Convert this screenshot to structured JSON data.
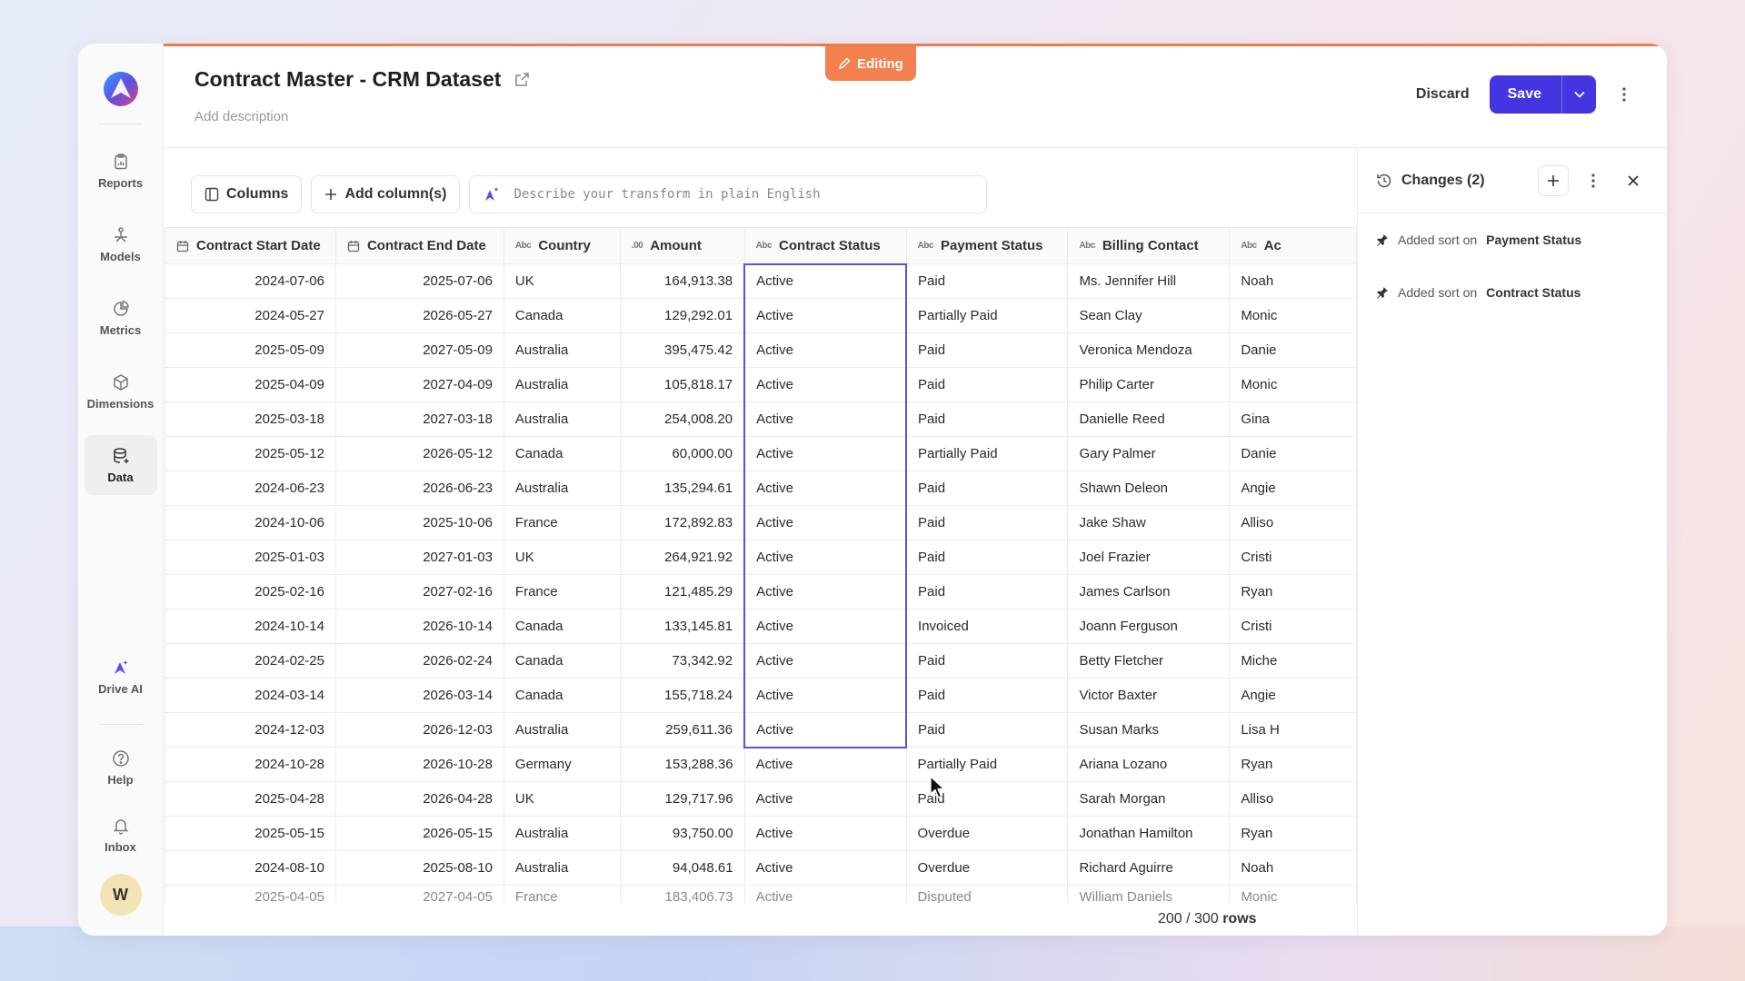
{
  "sidebar": {
    "items": [
      {
        "label": "Reports",
        "icon": "clipboard-icon"
      },
      {
        "label": "Models",
        "icon": "models-icon"
      },
      {
        "label": "Metrics",
        "icon": "pie-chart-icon"
      },
      {
        "label": "Dimensions",
        "icon": "cube-icon"
      },
      {
        "label": "Data",
        "icon": "database-icon",
        "active": true
      }
    ],
    "drive_ai": "Drive AI",
    "help": "Help",
    "inbox": "Inbox",
    "avatar": "W"
  },
  "header": {
    "editing": "Editing",
    "title": "Contract Master - CRM Dataset",
    "description_placeholder": "Add description",
    "discard": "Discard",
    "save": "Save"
  },
  "toolbar": {
    "columns": "Columns",
    "add_columns": "Add column(s)",
    "transform_placeholder": "Describe your transform in plain English"
  },
  "table": {
    "columns": [
      {
        "label": "Contract Start Date",
        "type": "date"
      },
      {
        "label": "Contract End Date",
        "type": "date"
      },
      {
        "label": "Country",
        "type": "Abc"
      },
      {
        "label": "Amount",
        "type": ".00"
      },
      {
        "label": "Contract Status",
        "type": "Abc"
      },
      {
        "label": "Payment Status",
        "type": "Abc"
      },
      {
        "label": "Billing Contact",
        "type": "Abc"
      },
      {
        "label": "Ac",
        "type": "Abc"
      }
    ],
    "rows": [
      [
        "2024-07-06",
        "2025-07-06",
        "UK",
        "164,913.38",
        "Active",
        "Paid",
        "Ms. Jennifer Hill",
        "Noah"
      ],
      [
        "2024-05-27",
        "2026-05-27",
        "Canada",
        "129,292.01",
        "Active",
        "Partially Paid",
        "Sean Clay",
        "Monic"
      ],
      [
        "2025-05-09",
        "2027-05-09",
        "Australia",
        "395,475.42",
        "Active",
        "Paid",
        "Veronica Mendoza",
        "Danie"
      ],
      [
        "2025-04-09",
        "2027-04-09",
        "Australia",
        "105,818.17",
        "Active",
        "Paid",
        "Philip Carter",
        "Monic"
      ],
      [
        "2025-03-18",
        "2027-03-18",
        "Australia",
        "254,008.20",
        "Active",
        "Paid",
        "Danielle Reed",
        "Gina"
      ],
      [
        "2025-05-12",
        "2026-05-12",
        "Canada",
        "60,000.00",
        "Active",
        "Partially Paid",
        "Gary Palmer",
        "Danie"
      ],
      [
        "2024-06-23",
        "2026-06-23",
        "Australia",
        "135,294.61",
        "Active",
        "Paid",
        "Shawn Deleon",
        "Angie"
      ],
      [
        "2024-10-06",
        "2025-10-06",
        "France",
        "172,892.83",
        "Active",
        "Paid",
        "Jake Shaw",
        "Alliso"
      ],
      [
        "2025-01-03",
        "2027-01-03",
        "UK",
        "264,921.92",
        "Active",
        "Paid",
        "Joel Frazier",
        "Cristi"
      ],
      [
        "2025-02-16",
        "2027-02-16",
        "France",
        "121,485.29",
        "Active",
        "Paid",
        "James Carlson",
        "Ryan"
      ],
      [
        "2024-10-14",
        "2026-10-14",
        "Canada",
        "133,145.81",
        "Active",
        "Invoiced",
        "Joann Ferguson",
        "Cristi"
      ],
      [
        "2024-02-25",
        "2026-02-24",
        "Canada",
        "73,342.92",
        "Active",
        "Paid",
        "Betty Fletcher",
        "Miche"
      ],
      [
        "2024-03-14",
        "2026-03-14",
        "Canada",
        "155,718.24",
        "Active",
        "Paid",
        "Victor Baxter",
        "Angie"
      ],
      [
        "2024-12-03",
        "2026-12-03",
        "Australia",
        "259,611.36",
        "Active",
        "Paid",
        "Susan Marks",
        "Lisa H"
      ],
      [
        "2024-10-28",
        "2026-10-28",
        "Germany",
        "153,288.36",
        "Active",
        "Partially Paid",
        "Ariana Lozano",
        "Ryan"
      ],
      [
        "2025-04-28",
        "2026-04-28",
        "UK",
        "129,717.96",
        "Active",
        "Paid",
        "Sarah Morgan",
        "Alliso"
      ],
      [
        "2025-05-15",
        "2026-05-15",
        "Australia",
        "93,750.00",
        "Active",
        "Overdue",
        "Jonathan Hamilton",
        "Ryan"
      ],
      [
        "2024-08-10",
        "2025-08-10",
        "Australia",
        "94,048.61",
        "Active",
        "Overdue",
        "Richard Aguirre",
        "Noah"
      ],
      [
        "2025-04-05",
        "2027-04-05",
        "France",
        "183,406.73",
        "Active",
        "Disputed",
        "William Daniels",
        "Monic"
      ]
    ],
    "row_count": "200 / 300",
    "row_count_suffix": "rows"
  },
  "changes": {
    "title": "Changes (2)",
    "items": [
      {
        "prefix": "Added sort on",
        "target": "Payment Status"
      },
      {
        "prefix": "Added sort on",
        "target": "Contract Status"
      }
    ]
  },
  "colors": {
    "accent": "#4535e0",
    "editing": "#f2814f",
    "selection": "#5b4fe6"
  }
}
